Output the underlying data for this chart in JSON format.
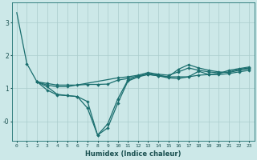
{
  "xlabel": "Humidex (Indice chaleur)",
  "background_color": "#cce8e8",
  "line_color": "#1a6e6e",
  "grid_color": "#aacccc",
  "xlim": [
    -0.5,
    23.5
  ],
  "ylim": [
    -0.6,
    3.6
  ],
  "yticks": [
    0,
    1,
    2,
    3
  ],
  "ytick_labels": [
    "-0",
    "1",
    "2",
    "3"
  ],
  "xticks": [
    0,
    1,
    2,
    3,
    4,
    5,
    6,
    7,
    8,
    9,
    10,
    11,
    12,
    13,
    14,
    15,
    16,
    17,
    18,
    19,
    20,
    21,
    22,
    23
  ],
  "line1_no_marker": {
    "x": [
      0,
      1
    ],
    "y": [
      3.3,
      1.75
    ]
  },
  "line1": {
    "x": [
      1,
      2,
      3,
      4,
      5,
      6,
      7,
      8,
      9,
      10,
      11,
      12,
      13,
      14,
      15,
      16,
      17,
      18,
      19,
      20,
      21,
      22,
      23
    ],
    "y": [
      1.75,
      1.2,
      0.95,
      0.8,
      0.78,
      0.75,
      0.4,
      -0.42,
      -0.08,
      0.68,
      1.25,
      1.35,
      1.45,
      1.4,
      1.35,
      1.35,
      1.35,
      1.4,
      1.42,
      1.45,
      1.55,
      1.6,
      1.65
    ]
  },
  "line2": {
    "x": [
      2,
      3,
      4,
      5,
      6,
      7,
      8,
      9,
      10,
      11,
      12,
      13,
      14,
      15,
      16,
      17,
      18,
      19,
      20,
      21,
      22,
      23
    ],
    "y": [
      1.2,
      1.15,
      1.1,
      1.1,
      1.1,
      1.12,
      1.12,
      1.13,
      1.25,
      1.3,
      1.38,
      1.43,
      1.38,
      1.35,
      1.58,
      1.72,
      1.62,
      1.55,
      1.5,
      1.48,
      1.55,
      1.6
    ]
  },
  "line3": {
    "x": [
      2,
      3,
      4,
      5,
      6,
      7,
      8,
      9,
      10,
      11,
      12,
      13,
      14,
      15,
      16,
      17,
      18,
      19,
      20,
      21,
      22,
      23
    ],
    "y": [
      1.2,
      1.05,
      0.82,
      0.78,
      0.75,
      0.6,
      -0.42,
      -0.2,
      0.55,
      1.22,
      1.35,
      1.42,
      1.38,
      1.32,
      1.3,
      1.35,
      1.52,
      1.42,
      1.42,
      1.45,
      1.5,
      1.55
    ]
  },
  "line4": {
    "x": [
      2,
      3,
      4,
      5,
      10,
      11,
      12,
      13,
      14,
      15,
      16,
      17,
      18,
      19,
      20,
      21,
      22,
      23
    ],
    "y": [
      1.2,
      1.1,
      1.05,
      1.05,
      1.32,
      1.35,
      1.4,
      1.48,
      1.43,
      1.4,
      1.5,
      1.62,
      1.55,
      1.5,
      1.47,
      1.5,
      1.58,
      1.62
    ]
  }
}
